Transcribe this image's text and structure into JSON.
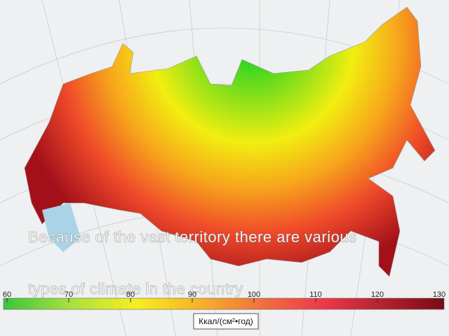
{
  "caption": {
    "lines": [
      "Because of the vast territory there are various",
      "types of climate in the country ."
    ]
  },
  "legend": {
    "range": [
      60,
      130
    ],
    "ticks": [
      60,
      70,
      80,
      90,
      100,
      110,
      120,
      130
    ],
    "unit": "Ккал/(см²•год)"
  }
}
